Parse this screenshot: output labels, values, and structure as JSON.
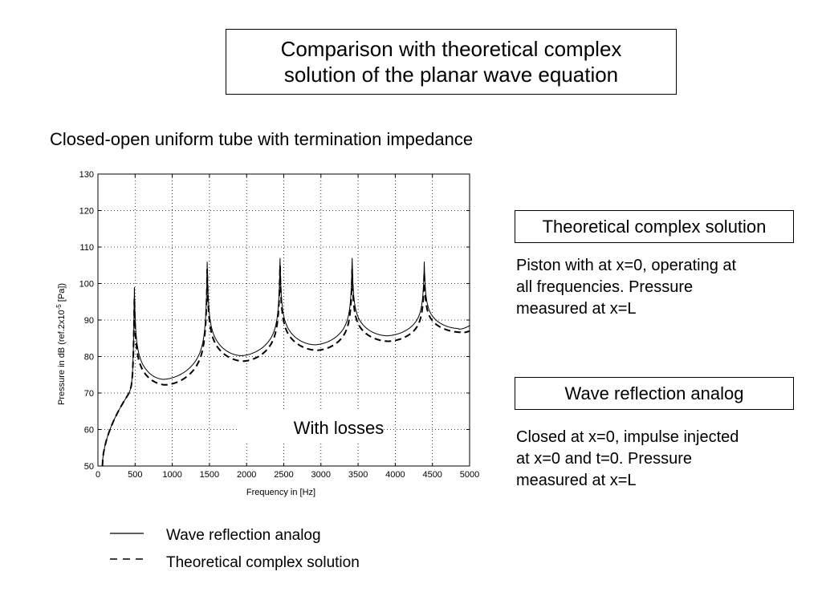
{
  "slide": {
    "title_line1": "Comparison with theoretical complex",
    "title_line2": "solution of the planar wave equation",
    "subtitle": "Closed-open uniform tube with termination impedance"
  },
  "panels": [
    {
      "heading": "Theoretical complex solution",
      "text": [
        "Piston with at x=0, operating at",
        "all frequencies. Pressure",
        "measured at x=L"
      ]
    },
    {
      "heading": "Wave reflection analog",
      "text": [
        "Closed at x=0, impulse injected",
        "at x=0 and t=0. Pressure",
        "measured at x=L"
      ]
    }
  ],
  "legend": [
    {
      "label": "Wave reflection analog",
      "style": "solid"
    },
    {
      "label": "Theoretical complex solution",
      "style": "dashed"
    }
  ],
  "chart_data": {
    "type": "line",
    "title": "",
    "xlabel": "Frequency in [Hz]",
    "ylabel_main": "Pressure in dB (ref.2x10",
    "ylabel_sup": "-5",
    "ylabel_end": " [Pa])",
    "annotation": "With losses",
    "xlim": [
      0,
      5000
    ],
    "ylim": [
      50,
      130
    ],
    "xticks": [
      0,
      500,
      1000,
      1500,
      2000,
      2500,
      3000,
      3500,
      4000,
      4500,
      5000
    ],
    "yticks": [
      50,
      60,
      70,
      80,
      90,
      100,
      110,
      120,
      130
    ],
    "grid": true,
    "legend_position": "below",
    "series": [
      {
        "name": "Wave reflection analog",
        "style": "solid",
        "color": "#000000",
        "peaks": [
          [
            490,
            99
          ],
          [
            1470,
            106
          ],
          [
            2450,
            107
          ],
          [
            3420,
            107
          ],
          [
            4390,
            106
          ]
        ],
        "troughs": [
          [
            870,
            73.5
          ],
          [
            1920,
            80
          ],
          [
            2910,
            83
          ],
          [
            3880,
            85.5
          ],
          [
            4850,
            87.5
          ]
        ],
        "start": [
          60,
          50
        ],
        "end": [
          5000,
          88.5
        ]
      },
      {
        "name": "Theoretical complex solution",
        "style": "dashed",
        "color": "#000000",
        "peaks": [
          [
            490,
            96
          ],
          [
            1470,
            104
          ],
          [
            2450,
            105
          ],
          [
            3420,
            104
          ],
          [
            4390,
            103
          ]
        ],
        "troughs": [
          [
            900,
            72
          ],
          [
            1950,
            78.5
          ],
          [
            2940,
            81.5
          ],
          [
            3900,
            84
          ],
          [
            4880,
            86.5
          ]
        ],
        "start": [
          60,
          50
        ],
        "end": [
          5000,
          87
        ]
      }
    ]
  },
  "colors": {
    "foreground": "#000000",
    "grid": "#000000",
    "background": "#ffffff"
  }
}
